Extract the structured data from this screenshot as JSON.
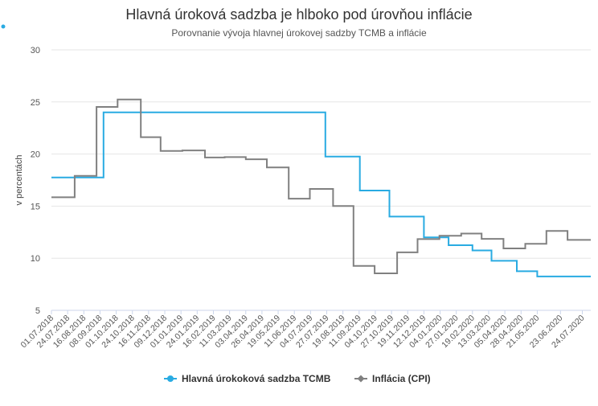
{
  "chart_data": {
    "type": "line",
    "step": true,
    "title": "Hlavná úroková sadzba je hlboko pod úrovňou inflácie",
    "subtitle": "Porovnanie vývoja hlavnej úrokovej sadzby TCMB a inflácie",
    "ylabel": "v percentách",
    "xlabel": "",
    "ylim": [
      5,
      30
    ],
    "yticks": [
      5,
      10,
      15,
      20,
      25,
      30
    ],
    "grid": true,
    "legend_position": "bottom-center",
    "x_categories": [
      "01.07.2018",
      "24.07.2018",
      "16.08.2018",
      "08.09.2018",
      "01.10.2018",
      "24.10.2018",
      "16.11.2018",
      "09.12.2018",
      "01.01.2019",
      "24.01.2019",
      "16.02.2019",
      "11.03.2019",
      "03.04.2019",
      "26.04.2019",
      "19.05.2019",
      "11.06.2019",
      "04.07.2019",
      "27.07.2019",
      "19.08.2019",
      "11.09.2019",
      "04.10.2019",
      "27.10.2019",
      "19.11.2019",
      "12.12.2019",
      "04.01.2020",
      "27.01.2020",
      "19.02.2020",
      "13.03.2020",
      "05.04.2020",
      "28.04.2020",
      "21.05.2020",
      "23.06.2020",
      "24.07.2020"
    ],
    "series": [
      {
        "name": "Hlavná úrokoková sadzba TCMB",
        "color": "#29abe2",
        "points": [
          {
            "x": "2018-07-01",
            "y": 17.75
          },
          {
            "x": "2018-09-13",
            "y": 24.0
          },
          {
            "x": "2019-07-25",
            "y": 19.75
          },
          {
            "x": "2019-09-12",
            "y": 16.5
          },
          {
            "x": "2019-10-24",
            "y": 14.0
          },
          {
            "x": "2019-12-12",
            "y": 12.0
          },
          {
            "x": "2020-01-16",
            "y": 11.25
          },
          {
            "x": "2020-02-19",
            "y": 10.75
          },
          {
            "x": "2020-03-17",
            "y": 9.75
          },
          {
            "x": "2020-04-22",
            "y": 8.75
          },
          {
            "x": "2020-05-21",
            "y": 8.25
          },
          {
            "x": "2020-08-05",
            "y": 8.25
          }
        ]
      },
      {
        "name": "Inflácia (CPI)",
        "color": "#808080",
        "points": [
          {
            "x": "2018-07-01",
            "y": 15.85
          },
          {
            "x": "2018-08-03",
            "y": 17.9
          },
          {
            "x": "2018-09-03",
            "y": 24.52
          },
          {
            "x": "2018-10-03",
            "y": 25.24
          },
          {
            "x": "2018-11-05",
            "y": 21.62
          },
          {
            "x": "2018-12-03",
            "y": 20.3
          },
          {
            "x": "2019-01-03",
            "y": 20.35
          },
          {
            "x": "2019-02-04",
            "y": 19.67
          },
          {
            "x": "2019-03-04",
            "y": 19.71
          },
          {
            "x": "2019-04-03",
            "y": 19.5
          },
          {
            "x": "2019-05-03",
            "y": 18.71
          },
          {
            "x": "2019-06-03",
            "y": 15.72
          },
          {
            "x": "2019-07-03",
            "y": 16.65
          },
          {
            "x": "2019-08-05",
            "y": 15.01
          },
          {
            "x": "2019-09-03",
            "y": 9.26
          },
          {
            "x": "2019-10-03",
            "y": 8.55
          },
          {
            "x": "2019-11-04",
            "y": 10.56
          },
          {
            "x": "2019-12-03",
            "y": 11.84
          },
          {
            "x": "2020-01-03",
            "y": 12.15
          },
          {
            "x": "2020-02-03",
            "y": 12.37
          },
          {
            "x": "2020-03-03",
            "y": 11.86
          },
          {
            "x": "2020-04-03",
            "y": 10.94
          },
          {
            "x": "2020-05-04",
            "y": 11.39
          },
          {
            "x": "2020-06-03",
            "y": 12.62
          },
          {
            "x": "2020-07-03",
            "y": 11.76
          },
          {
            "x": "2020-08-05",
            "y": 11.76
          }
        ]
      }
    ]
  }
}
